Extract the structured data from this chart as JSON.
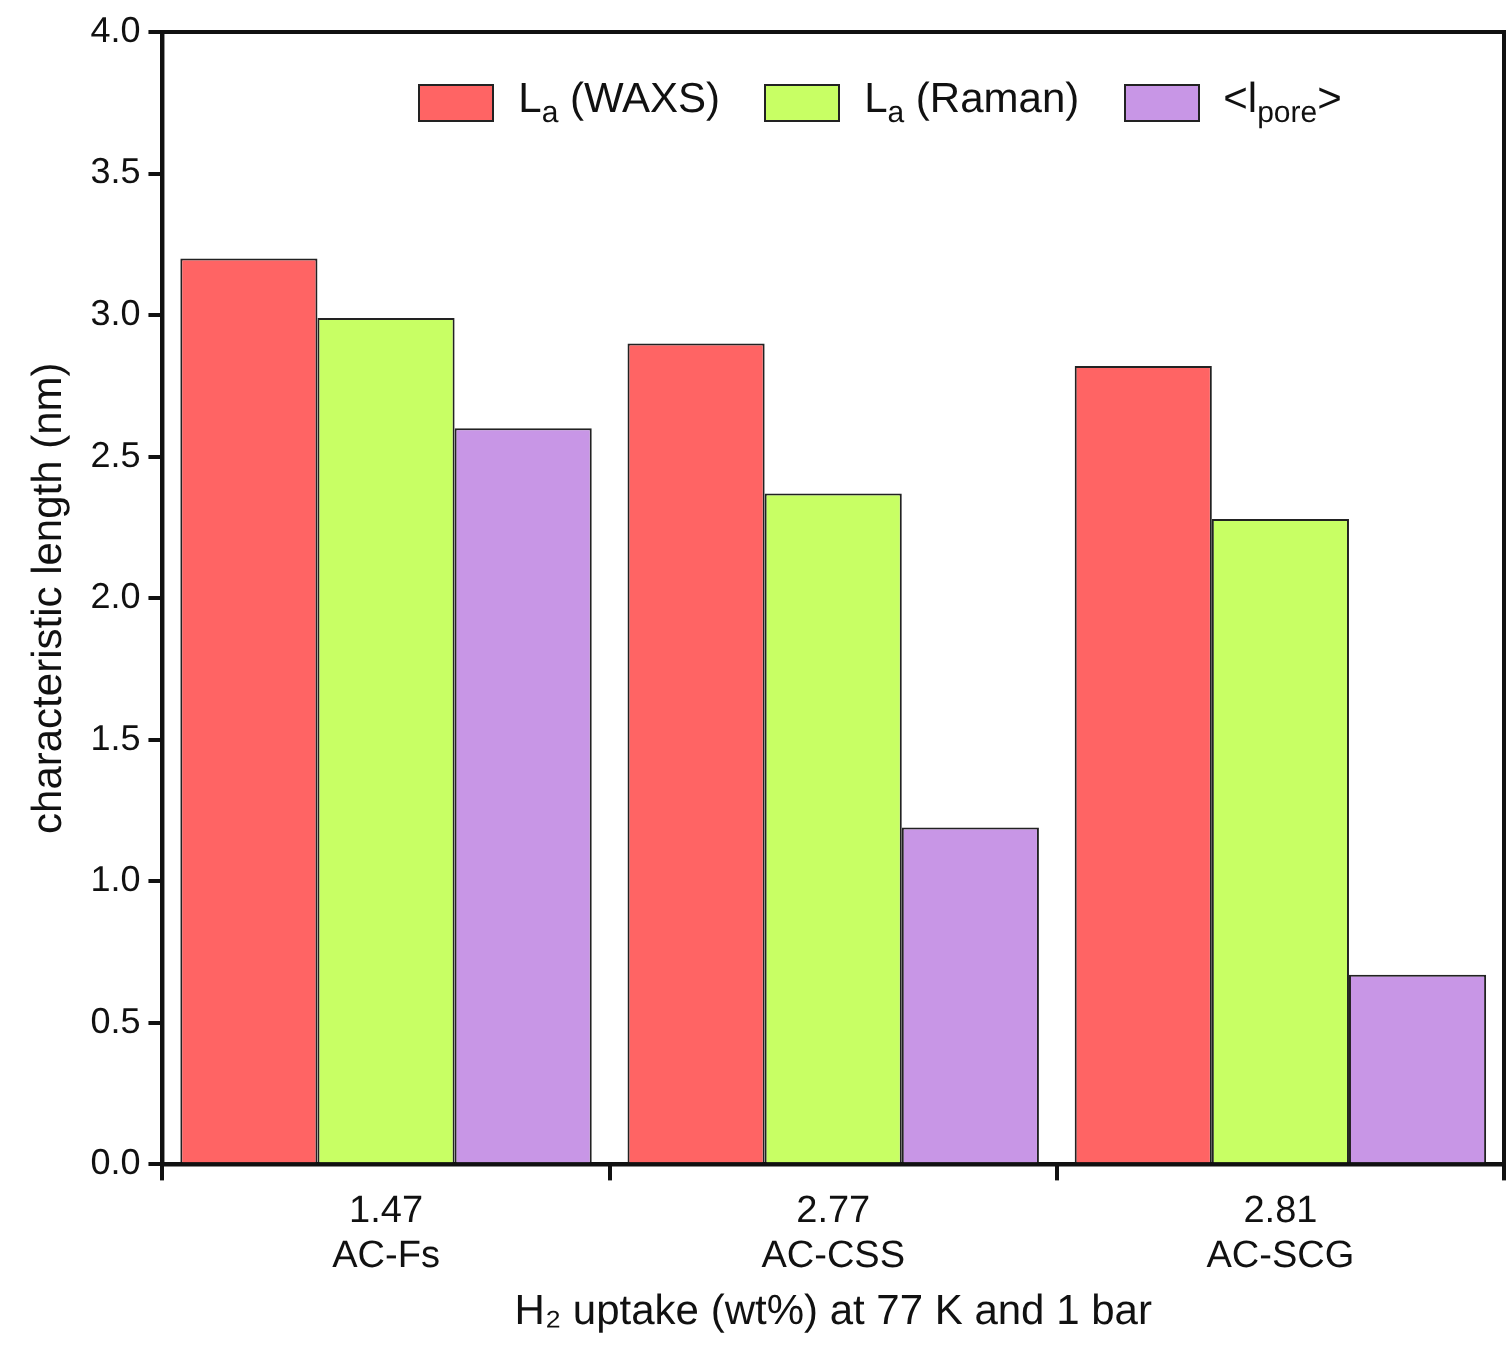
{
  "chart_data": {
    "type": "bar",
    "xlabel": "H₂ uptake (wt%) at 77 K and 1 bar",
    "ylabel": "characteristic length (nm)",
    "categories": [
      "1.47\nAC-Fs",
      "2.77\nAC-CSS",
      "2.81\nAC-SCG"
    ],
    "series": [
      {
        "name": "L$_{a}$ (WAXS)",
        "color": "#ff6464",
        "values": [
          3.2,
          2.9,
          2.82
        ]
      },
      {
        "name": "L$_{a}$ (Raman)",
        "color": "#c8ff64",
        "values": [
          2.99,
          2.37,
          2.28
        ]
      },
      {
        "name": "<l$_{pore}$>",
        "color": "#c896e6",
        "values": [
          2.6,
          1.19,
          0.67
        ]
      }
    ],
    "ylim": [
      0,
      4
    ],
    "yticks": [
      {
        "value": 0,
        "label": "0.0"
      },
      {
        "value": 0.5,
        "label": "0.5"
      },
      {
        "value": 1,
        "label": "1.0"
      },
      {
        "value": 1.5,
        "label": "1.5"
      },
      {
        "value": 2,
        "label": "2.0"
      },
      {
        "value": 2.5,
        "label": "2.5"
      },
      {
        "value": 3,
        "label": "3.0"
      },
      {
        "value": 3.5,
        "label": "3.5"
      },
      {
        "value": 4,
        "label": "4.0"
      }
    ],
    "grid": false,
    "legend": "top"
  }
}
